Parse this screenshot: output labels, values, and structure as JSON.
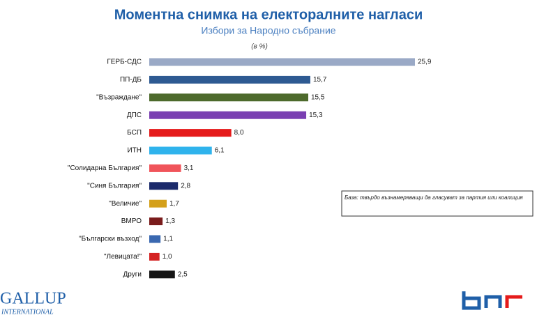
{
  "chart_data": {
    "type": "hbar",
    "title": "Моментна снимка на електоралните нагласи",
    "subtitle": "Избори за Народно събрание",
    "unit_note": "(в %)",
    "annotation": "База: твърдо възнамеряващи да гласуват за партия или коалиция",
    "categories": [
      "ГЕРБ-СДС",
      "ПП-ДБ",
      "\"Възраждане\"",
      "ДПС",
      "БСП",
      "ИТН",
      "\"Солидарна България\"",
      "\"Синя България\"",
      "\"Величие\"",
      "ВМРО",
      "\"Български възход\"",
      "\"Левицата!\"",
      "Други"
    ],
    "values": [
      25.9,
      15.7,
      15.5,
      15.3,
      8.0,
      6.1,
      3.1,
      2.8,
      1.7,
      1.3,
      1.1,
      1.0,
      2.5
    ],
    "value_labels": [
      "25,9",
      "15,7",
      "15,5",
      "15,3",
      "8,0",
      "6,1",
      "3,1",
      "2,8",
      "1,7",
      "1,3",
      "1,1",
      "1,0",
      "2,5"
    ],
    "colors": [
      "#9aa9c6",
      "#2e5a92",
      "#4d6a2c",
      "#7a3fb2",
      "#e51b1b",
      "#2fb3ec",
      "#f0545a",
      "#1b2a6b",
      "#d4a01a",
      "#7a1c1c",
      "#3a68b0",
      "#d42222",
      "#151515"
    ]
  },
  "logos": {
    "left_top": "GALLUP",
    "left_bottom": "INTERNATIONAL"
  }
}
